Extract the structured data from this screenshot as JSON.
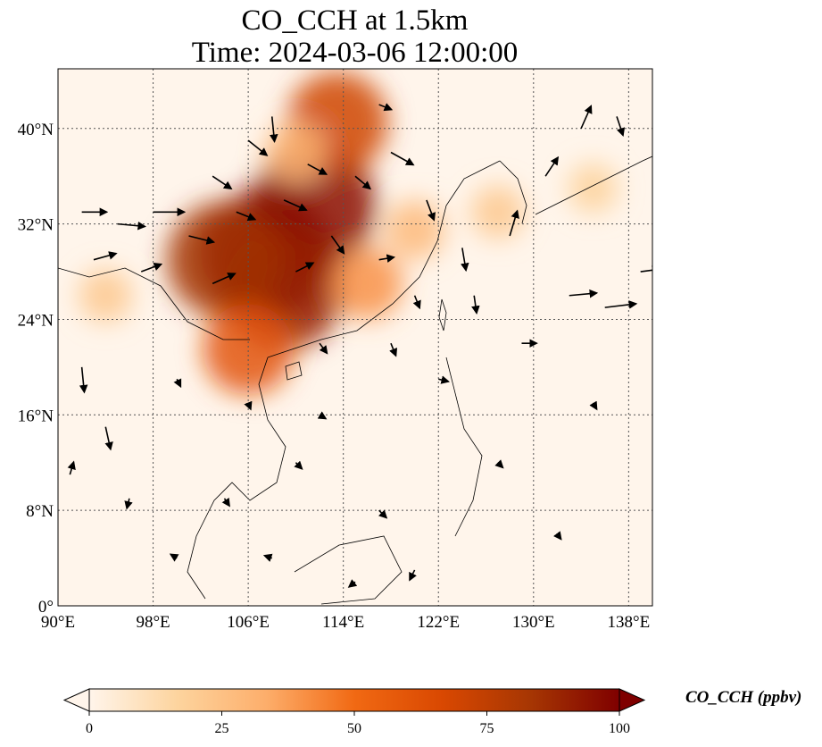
{
  "title": {
    "line1": "CO_CCH at 1.5km",
    "line2": "Time: 2024-03-06 12:00:00"
  },
  "map": {
    "lon_range": [
      90,
      140
    ],
    "lat_range": [
      0,
      45
    ],
    "lon_ticks": [
      {
        "value": 90,
        "label": "90°E"
      },
      {
        "value": 98,
        "label": "98°E"
      },
      {
        "value": 106,
        "label": "106°E"
      },
      {
        "value": 114,
        "label": "114°E"
      },
      {
        "value": 122,
        "label": "122°E"
      },
      {
        "value": 130,
        "label": "130°E"
      },
      {
        "value": 138,
        "label": "138°E"
      }
    ],
    "lat_ticks": [
      {
        "value": 0,
        "label": "0°"
      },
      {
        "value": 8,
        "label": "8°N"
      },
      {
        "value": 16,
        "label": "16°N"
      },
      {
        "value": 24,
        "label": "24°N"
      },
      {
        "value": 32,
        "label": "32°N"
      },
      {
        "value": 40,
        "label": "40°N"
      }
    ],
    "gridlines": true,
    "background_color": "#fff5eb",
    "concentration_regions": [
      {
        "lon": 107.5,
        "lat": 29.5,
        "value": 100
      },
      {
        "lon": 111.5,
        "lat": 33.5,
        "value": 95
      },
      {
        "lon": 109.0,
        "lat": 26.5,
        "value": 90
      },
      {
        "lon": 104.0,
        "lat": 29.0,
        "value": 85
      },
      {
        "lon": 113.5,
        "lat": 40.5,
        "value": 70
      },
      {
        "lon": 106.0,
        "lat": 21.5,
        "value": 60
      },
      {
        "lon": 116.0,
        "lat": 27.0,
        "value": 40
      },
      {
        "lon": 120.0,
        "lat": 31.5,
        "value": 28
      },
      {
        "lon": 127.0,
        "lat": 33.0,
        "value": 22
      },
      {
        "lon": 135.0,
        "lat": 35.0,
        "value": 18
      },
      {
        "lon": 94.0,
        "lat": 26.0,
        "value": 22
      },
      {
        "lon": 110.0,
        "lat": 38.0,
        "value": 30
      }
    ],
    "wind_vectors": [
      {
        "lon": 92,
        "lat": 33,
        "u": 2.0,
        "v": 0.0
      },
      {
        "lon": 95,
        "lat": 32,
        "u": 2.2,
        "v": -0.2
      },
      {
        "lon": 98,
        "lat": 33,
        "u": 2.5,
        "v": 0.0
      },
      {
        "lon": 101,
        "lat": 31,
        "u": 2.0,
        "v": -0.5
      },
      {
        "lon": 93,
        "lat": 29,
        "u": 1.8,
        "v": 0.5
      },
      {
        "lon": 97,
        "lat": 28,
        "u": 1.6,
        "v": 0.6
      },
      {
        "lon": 103,
        "lat": 27,
        "u": 1.8,
        "v": 0.8
      },
      {
        "lon": 103,
        "lat": 36,
        "u": 1.5,
        "v": -1.0
      },
      {
        "lon": 106,
        "lat": 39,
        "u": 1.5,
        "v": -1.2
      },
      {
        "lon": 108,
        "lat": 41,
        "u": 0.2,
        "v": -2.0
      },
      {
        "lon": 111,
        "lat": 37,
        "u": 1.5,
        "v": -0.8
      },
      {
        "lon": 115,
        "lat": 36,
        "u": 1.2,
        "v": -1.0
      },
      {
        "lon": 117,
        "lat": 42,
        "u": 1.0,
        "v": -0.4
      },
      {
        "lon": 118,
        "lat": 38,
        "u": 1.8,
        "v": -1.0
      },
      {
        "lon": 121,
        "lat": 34,
        "u": 0.6,
        "v": -1.6
      },
      {
        "lon": 124,
        "lat": 30,
        "u": 0.3,
        "v": -1.8
      },
      {
        "lon": 128,
        "lat": 31,
        "u": 0.6,
        "v": 2.0
      },
      {
        "lon": 131,
        "lat": 36,
        "u": 1.0,
        "v": 1.5
      },
      {
        "lon": 134,
        "lat": 40,
        "u": 0.8,
        "v": 1.8
      },
      {
        "lon": 137,
        "lat": 41,
        "u": 0.5,
        "v": -1.5
      },
      {
        "lon": 133,
        "lat": 26,
        "u": 2.2,
        "v": 0.2
      },
      {
        "lon": 136,
        "lat": 25,
        "u": 2.5,
        "v": 0.3
      },
      {
        "lon": 139,
        "lat": 28,
        "u": 1.5,
        "v": 0.2
      },
      {
        "lon": 129,
        "lat": 22,
        "u": 1.2,
        "v": 0.0
      },
      {
        "lon": 125,
        "lat": 26,
        "u": 0.2,
        "v": -1.4
      },
      {
        "lon": 118,
        "lat": 22,
        "u": 0.4,
        "v": -1.0
      },
      {
        "lon": 122,
        "lat": 19,
        "u": 0.8,
        "v": -0.2
      },
      {
        "lon": 112,
        "lat": 22,
        "u": 0.6,
        "v": -0.8
      },
      {
        "lon": 92,
        "lat": 20,
        "u": 0.2,
        "v": -2.0
      },
      {
        "lon": 94,
        "lat": 15,
        "u": 0.4,
        "v": -1.8
      },
      {
        "lon": 91,
        "lat": 11,
        "u": 0.3,
        "v": 1.0
      },
      {
        "lon": 96,
        "lat": 9,
        "u": -0.2,
        "v": -0.8
      },
      {
        "lon": 104,
        "lat": 9,
        "u": 0.4,
        "v": -0.6
      },
      {
        "lon": 110,
        "lat": 12,
        "u": 0.5,
        "v": -0.5
      },
      {
        "lon": 117,
        "lat": 8,
        "u": 0.6,
        "v": -0.6
      },
      {
        "lon": 120,
        "lat": 3,
        "u": -0.4,
        "v": -0.8
      },
      {
        "lon": 115,
        "lat": 2,
        "u": -0.5,
        "v": -0.4
      },
      {
        "lon": 108,
        "lat": 4,
        "u": -0.6,
        "v": 0.2
      },
      {
        "lon": 100,
        "lat": 4,
        "u": -0.5,
        "v": 0.3
      },
      {
        "lon": 127,
        "lat": 12,
        "u": 0.4,
        "v": -0.4
      },
      {
        "lon": 135,
        "lat": 17,
        "u": 0.3,
        "v": -0.5
      },
      {
        "lon": 132,
        "lat": 6,
        "u": 0.3,
        "v": -0.4
      },
      {
        "lon": 112,
        "lat": 16,
        "u": 0.5,
        "v": -0.3
      },
      {
        "lon": 106,
        "lat": 17,
        "u": 0.2,
        "v": -0.5
      },
      {
        "lon": 100,
        "lat": 19,
        "u": 0.3,
        "v": -0.6
      },
      {
        "lon": 109,
        "lat": 34,
        "u": 1.8,
        "v": -0.8
      },
      {
        "lon": 105,
        "lat": 33,
        "u": 1.5,
        "v": -0.6
      },
      {
        "lon": 113,
        "lat": 31,
        "u": 1.0,
        "v": -1.4
      },
      {
        "lon": 110,
        "lat": 28,
        "u": 1.4,
        "v": 0.7
      },
      {
        "lon": 117,
        "lat": 29,
        "u": 1.2,
        "v": 0.2
      },
      {
        "lon": 120,
        "lat": 26,
        "u": 0.4,
        "v": -1.0
      }
    ]
  },
  "colorbar": {
    "label": "CO_CCH (ppbv)",
    "ticks": [
      {
        "value": 0,
        "label": "0"
      },
      {
        "value": 25,
        "label": "25"
      },
      {
        "value": 50,
        "label": "50"
      },
      {
        "value": 75,
        "label": "75"
      },
      {
        "value": 100,
        "label": "100"
      }
    ],
    "range": [
      0,
      100
    ],
    "colors": [
      "#fff5eb",
      "#fdd49e",
      "#fdae6b",
      "#f16913",
      "#d94801",
      "#a63603",
      "#7f0000"
    ]
  }
}
